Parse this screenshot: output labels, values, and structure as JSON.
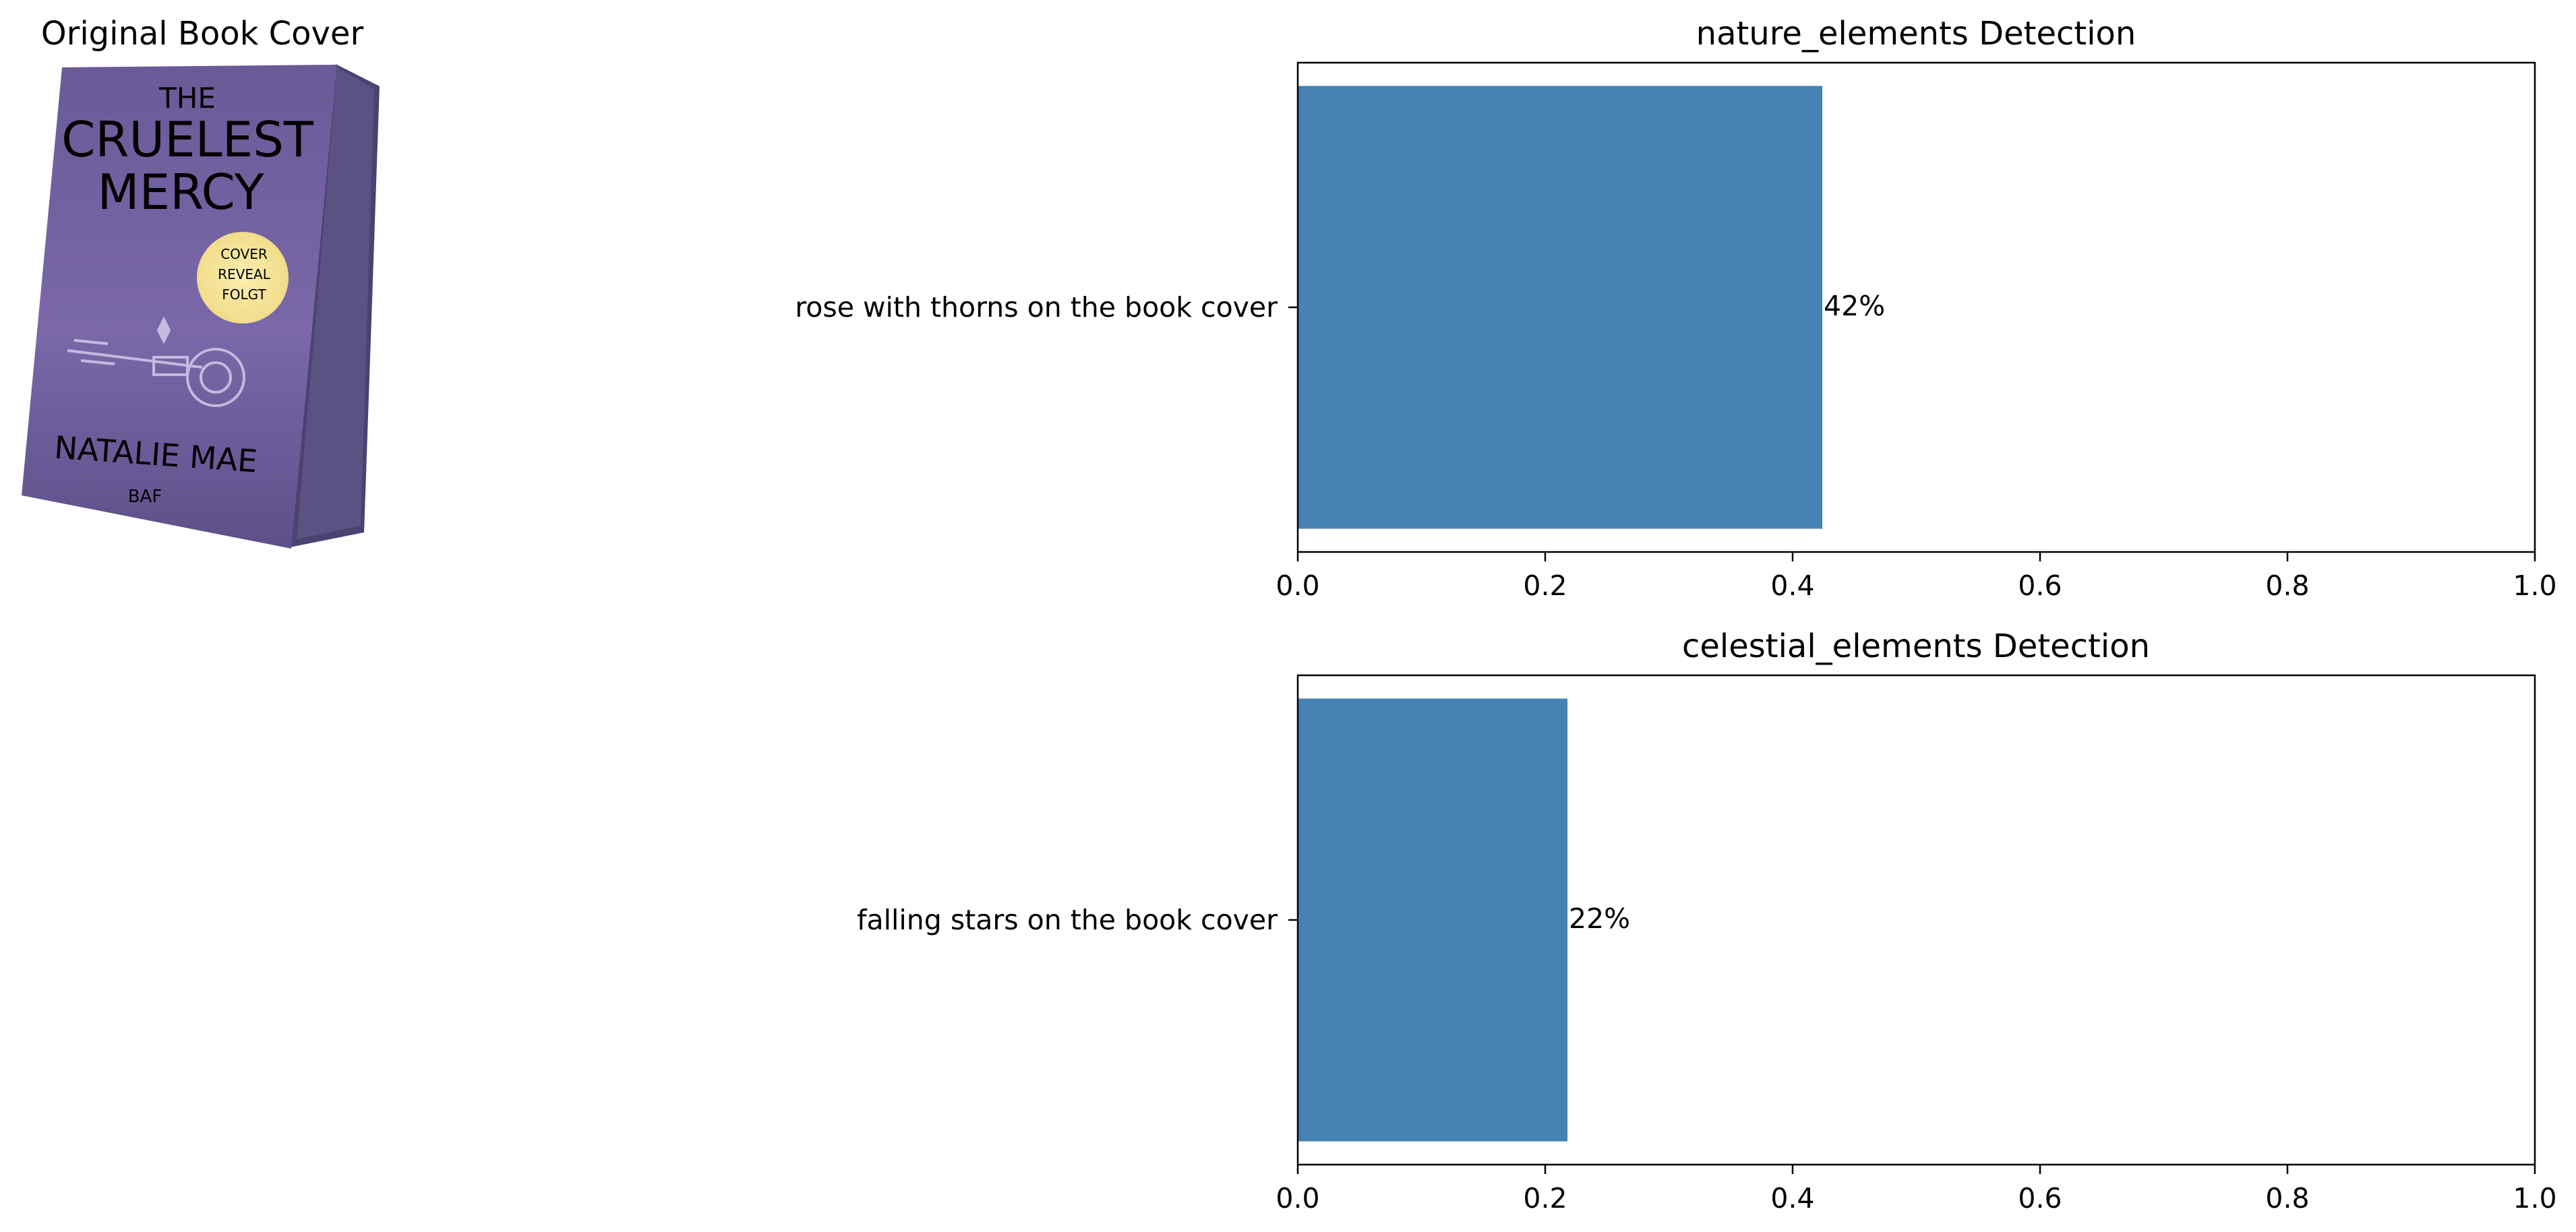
{
  "image_panel": {
    "title": "Original Book Cover",
    "cover": {
      "title_line1": "THE",
      "title_line2": "CRUELEST",
      "title_line3": "MERCY",
      "badge_line1": "COVER",
      "badge_line2": "REVEAL",
      "badge_line3": "FOLGT",
      "author": "NATALIE MAE",
      "publisher": "BAF"
    }
  },
  "chart_data": [
    {
      "type": "bar",
      "orientation": "horizontal",
      "title": "nature_elements Detection",
      "categories": [
        "rose with thorns on the book cover"
      ],
      "values": [
        0.424
      ],
      "value_labels": [
        "42%"
      ],
      "xlim": [
        0,
        1
      ],
      "xticks": [
        "0.0",
        "0.2",
        "0.4",
        "0.6",
        "0.8",
        "1.0"
      ],
      "xlabel": "",
      "ylabel": "",
      "grid": false,
      "bar_color": "#4682b4"
    },
    {
      "type": "bar",
      "orientation": "horizontal",
      "title": "celestial_elements Detection",
      "categories": [
        "falling stars on the book cover"
      ],
      "values": [
        0.218
      ],
      "value_labels": [
        "22%"
      ],
      "xlim": [
        0,
        1
      ],
      "xticks": [
        "0.0",
        "0.2",
        "0.4",
        "0.6",
        "0.8",
        "1.0"
      ],
      "xlabel": "",
      "ylabel": "",
      "grid": false,
      "bar_color": "#4682b4"
    }
  ]
}
